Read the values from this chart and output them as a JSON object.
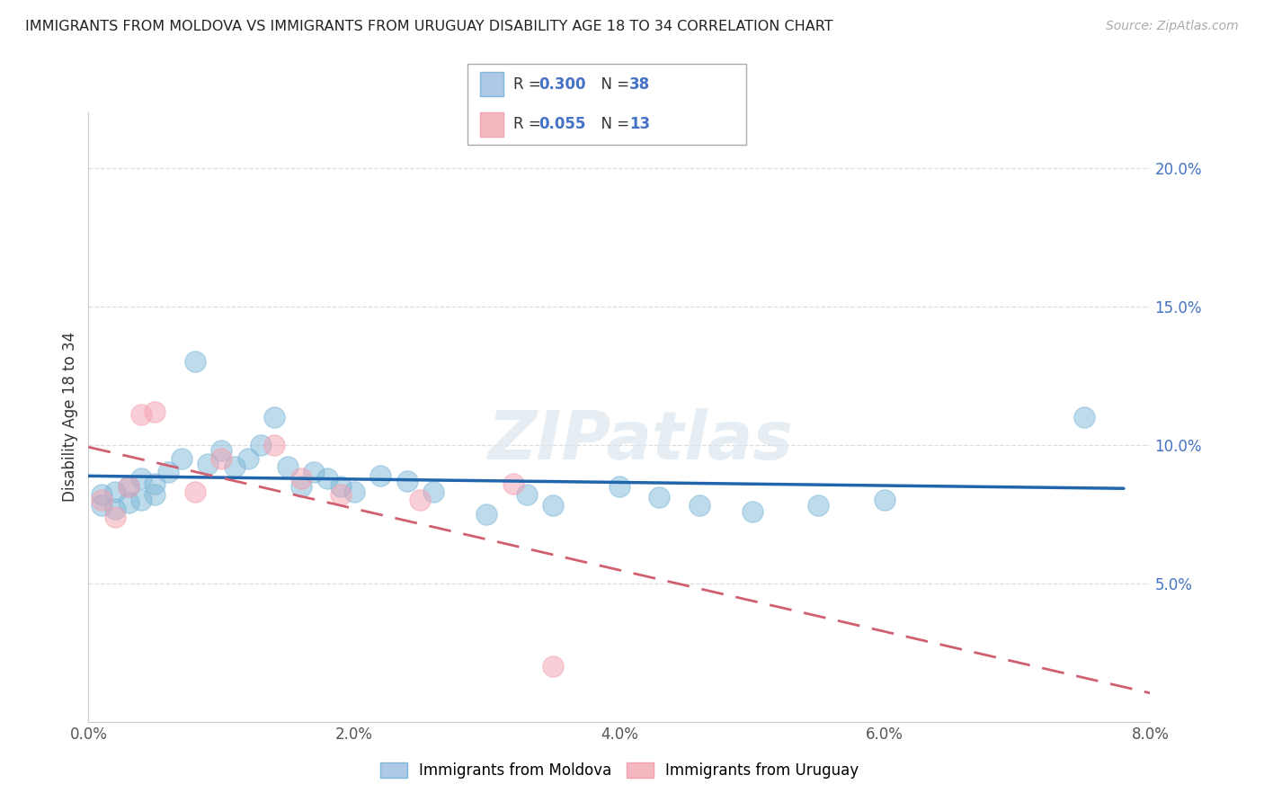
{
  "title": "IMMIGRANTS FROM MOLDOVA VS IMMIGRANTS FROM URUGUAY DISABILITY AGE 18 TO 34 CORRELATION CHART",
  "source": "Source: ZipAtlas.com",
  "ylabel": "Disability Age 18 to 34",
  "xlim": [
    0.0,
    0.08
  ],
  "ylim": [
    0.0,
    0.22
  ],
  "yticks": [
    0.05,
    0.1,
    0.15,
    0.2
  ],
  "ytick_labels": [
    "5.0%",
    "10.0%",
    "15.0%",
    "20.0%"
  ],
  "xticks": [
    0.0,
    0.02,
    0.04,
    0.06,
    0.08
  ],
  "xtick_labels": [
    "0.0%",
    "2.0%",
    "4.0%",
    "6.0%",
    "8.0%"
  ],
  "moldova_color": "#7db8d8",
  "uruguay_color": "#f4a0b0",
  "moldova_R": 0.3,
  "moldova_N": 38,
  "uruguay_R": 0.055,
  "uruguay_N": 13,
  "legend_label1": "Immigrants from Moldova",
  "legend_label2": "Immigrants from Uruguay",
  "watermark": "ZIPatlas",
  "moldova_x": [
    0.001,
    0.001,
    0.002,
    0.002,
    0.003,
    0.003,
    0.004,
    0.004,
    0.005,
    0.005,
    0.006,
    0.007,
    0.008,
    0.009,
    0.01,
    0.011,
    0.012,
    0.013,
    0.014,
    0.015,
    0.016,
    0.017,
    0.018,
    0.019,
    0.02,
    0.022,
    0.024,
    0.026,
    0.03,
    0.033,
    0.035,
    0.04,
    0.043,
    0.046,
    0.05,
    0.055,
    0.06,
    0.075
  ],
  "moldova_y": [
    0.082,
    0.078,
    0.083,
    0.077,
    0.085,
    0.079,
    0.088,
    0.08,
    0.086,
    0.082,
    0.09,
    0.095,
    0.13,
    0.093,
    0.098,
    0.092,
    0.095,
    0.1,
    0.11,
    0.092,
    0.085,
    0.09,
    0.088,
    0.085,
    0.083,
    0.089,
    0.087,
    0.083,
    0.075,
    0.082,
    0.078,
    0.085,
    0.081,
    0.078,
    0.076,
    0.078,
    0.08,
    0.11
  ],
  "uruguay_x": [
    0.001,
    0.002,
    0.003,
    0.004,
    0.005,
    0.008,
    0.01,
    0.014,
    0.016,
    0.019,
    0.025,
    0.032,
    0.035
  ],
  "uruguay_y": [
    0.08,
    0.074,
    0.085,
    0.111,
    0.112,
    0.083,
    0.095,
    0.1,
    0.088,
    0.082,
    0.08,
    0.086,
    0.02
  ],
  "background_color": "#ffffff",
  "grid_color": "#dddddd",
  "title_color": "#222222",
  "tick_label_color": "#4472c4",
  "trend_blue": "#2166ac",
  "trend_pink": "#d06070"
}
